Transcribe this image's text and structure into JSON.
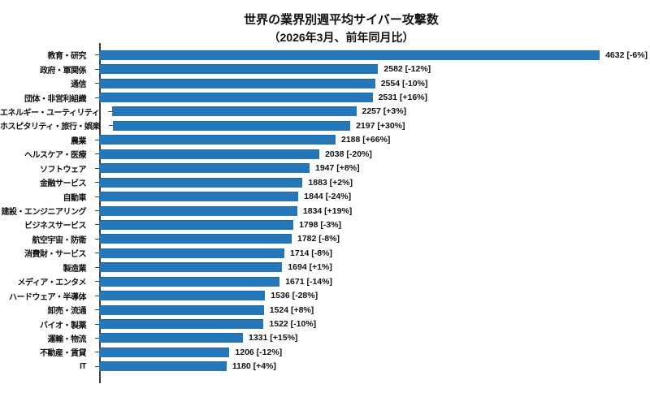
{
  "colors": {
    "bar": "#2577b7",
    "bar_edge": "#1d66a2",
    "axis": "#3d3d3d",
    "text": "#111111"
  },
  "chart_data": {
    "type": "bar",
    "orientation": "horizontal",
    "title": "世界の業界別週平均サイバー攻撃数",
    "subtitle": "（2026年3月、前年同月比）",
    "xlabel": "",
    "ylabel": "",
    "xlim": [
      0,
      5100
    ],
    "grid": false,
    "legend": false,
    "value_label_format": "{value} [{change}]",
    "categories": [
      "教育・研究",
      "政府・軍関係",
      "通信",
      "団体・非営利組織",
      "エネルギー・ユーティリティ",
      "ホスピタリティ・旅行・娯楽",
      "農業",
      "ヘルスケア・医療",
      "ソフトウェア",
      "金融サービス",
      "自動車",
      "建設・エンジニアリング",
      "ビジネスサービス",
      "航空宇宙・防衛",
      "消費財・サービス",
      "製造業",
      "メディア・エンタメ",
      "ハードウェア・半導体",
      "卸売・流通",
      "バイオ・製薬",
      "運輸・物流",
      "不動産・賃貸",
      "IT"
    ],
    "values": [
      4632,
      2582,
      2554,
      2531,
      2257,
      2197,
      2188,
      2038,
      1947,
      1883,
      1844,
      1834,
      1798,
      1782,
      1714,
      1694,
      1671,
      1536,
      1524,
      1522,
      1331,
      1206,
      1180
    ],
    "yoy_changes": [
      "-6%",
      "-12%",
      "-10%",
      "+16%",
      "+3%",
      "+30%",
      "+66%",
      "-20%",
      "+8%",
      "+2%",
      "-24%",
      "+19%",
      "-3%",
      "-8%",
      "-8%",
      "+1%",
      "-14%",
      "-28%",
      "+8%",
      "-10%",
      "+15%",
      "-12%",
      "+4%"
    ],
    "value_labels": [
      "4632 [-6%]",
      "2582 [-12%]",
      "2554 [-10%]",
      "2531 [+16%]",
      "2257 [+3%]",
      "2197 [+30%]",
      "2188 [+66%]",
      "2038 [-20%]",
      "1947 [+8%]",
      "1883 [+2%]",
      "1844 [-24%]",
      "1834 [+19%]",
      "1798 [-3%]",
      "1782 [-8%]",
      "1714 [-8%]",
      "1694 [+1%]",
      "1671 [-14%]",
      "1536 [-28%]",
      "1524 [+8%]",
      "1522 [-10%]",
      "1331 [+15%]",
      "1206 [-12%]",
      "1180 [+4%]"
    ]
  }
}
